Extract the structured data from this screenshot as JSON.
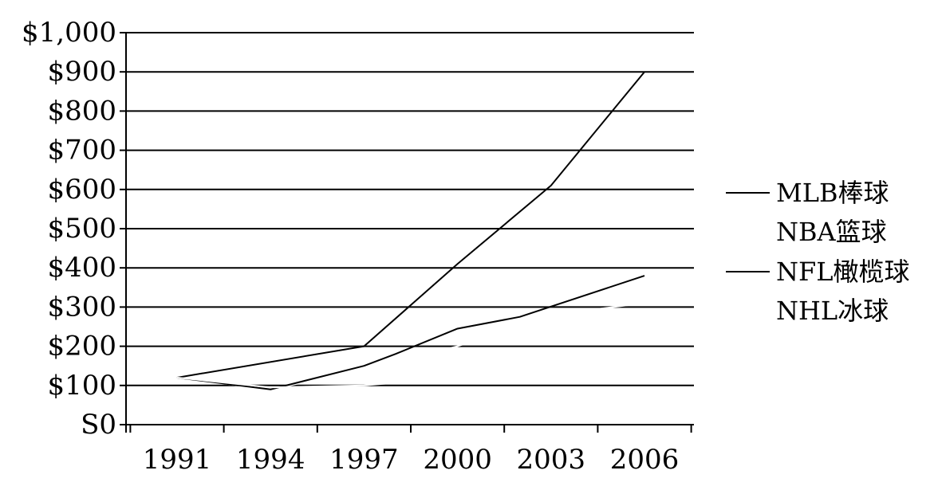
{
  "chart_data": {
    "type": "line",
    "x": [
      1991,
      1994,
      1997,
      1999,
      2000,
      2002,
      2006
    ],
    "x_ticks": [
      1991,
      1994,
      1997,
      2000,
      2003,
      2006
    ],
    "x_tick_labels": [
      "1991",
      "1994",
      "1997",
      "2000",
      "2003",
      "2006"
    ],
    "ylim": [
      0,
      1000
    ],
    "y_ticks": [
      0,
      100,
      200,
      300,
      400,
      500,
      600,
      700,
      800,
      900,
      1000
    ],
    "y_tick_labels": [
      "S0",
      "$100",
      "$200",
      "$300",
      "$400",
      "$500",
      "$600",
      "$700",
      "$800",
      "$900",
      "$1,000"
    ],
    "grid": true,
    "legend_position": "right",
    "series": [
      {
        "name": "MLB棒球",
        "color": "#000000",
        "visible": true,
        "x": [
          1991,
          1997,
          2000,
          2003,
          2006
        ],
        "values": [
          120,
          200,
          410,
          610,
          900
        ]
      },
      {
        "name": "NBA篮球",
        "color": "#ffffff",
        "visible": false,
        "x": [
          1991,
          1994,
          1997,
          2000,
          2003,
          2006
        ],
        "values": [
          120,
          90,
          140,
          200,
          280,
          310
        ]
      },
      {
        "name": "NFL橄榄球",
        "color": "#000000",
        "visible": true,
        "x": [
          1991,
          1994,
          1997,
          1998,
          2000,
          2002,
          2006
        ],
        "values": [
          120,
          90,
          150,
          180,
          245,
          275,
          380
        ]
      },
      {
        "name": "NHL冰球",
        "color": "#ffffff",
        "visible": false,
        "x": [
          1991,
          1994,
          1997,
          2000
        ],
        "values": [
          120,
          95,
          100,
          120
        ]
      }
    ]
  }
}
